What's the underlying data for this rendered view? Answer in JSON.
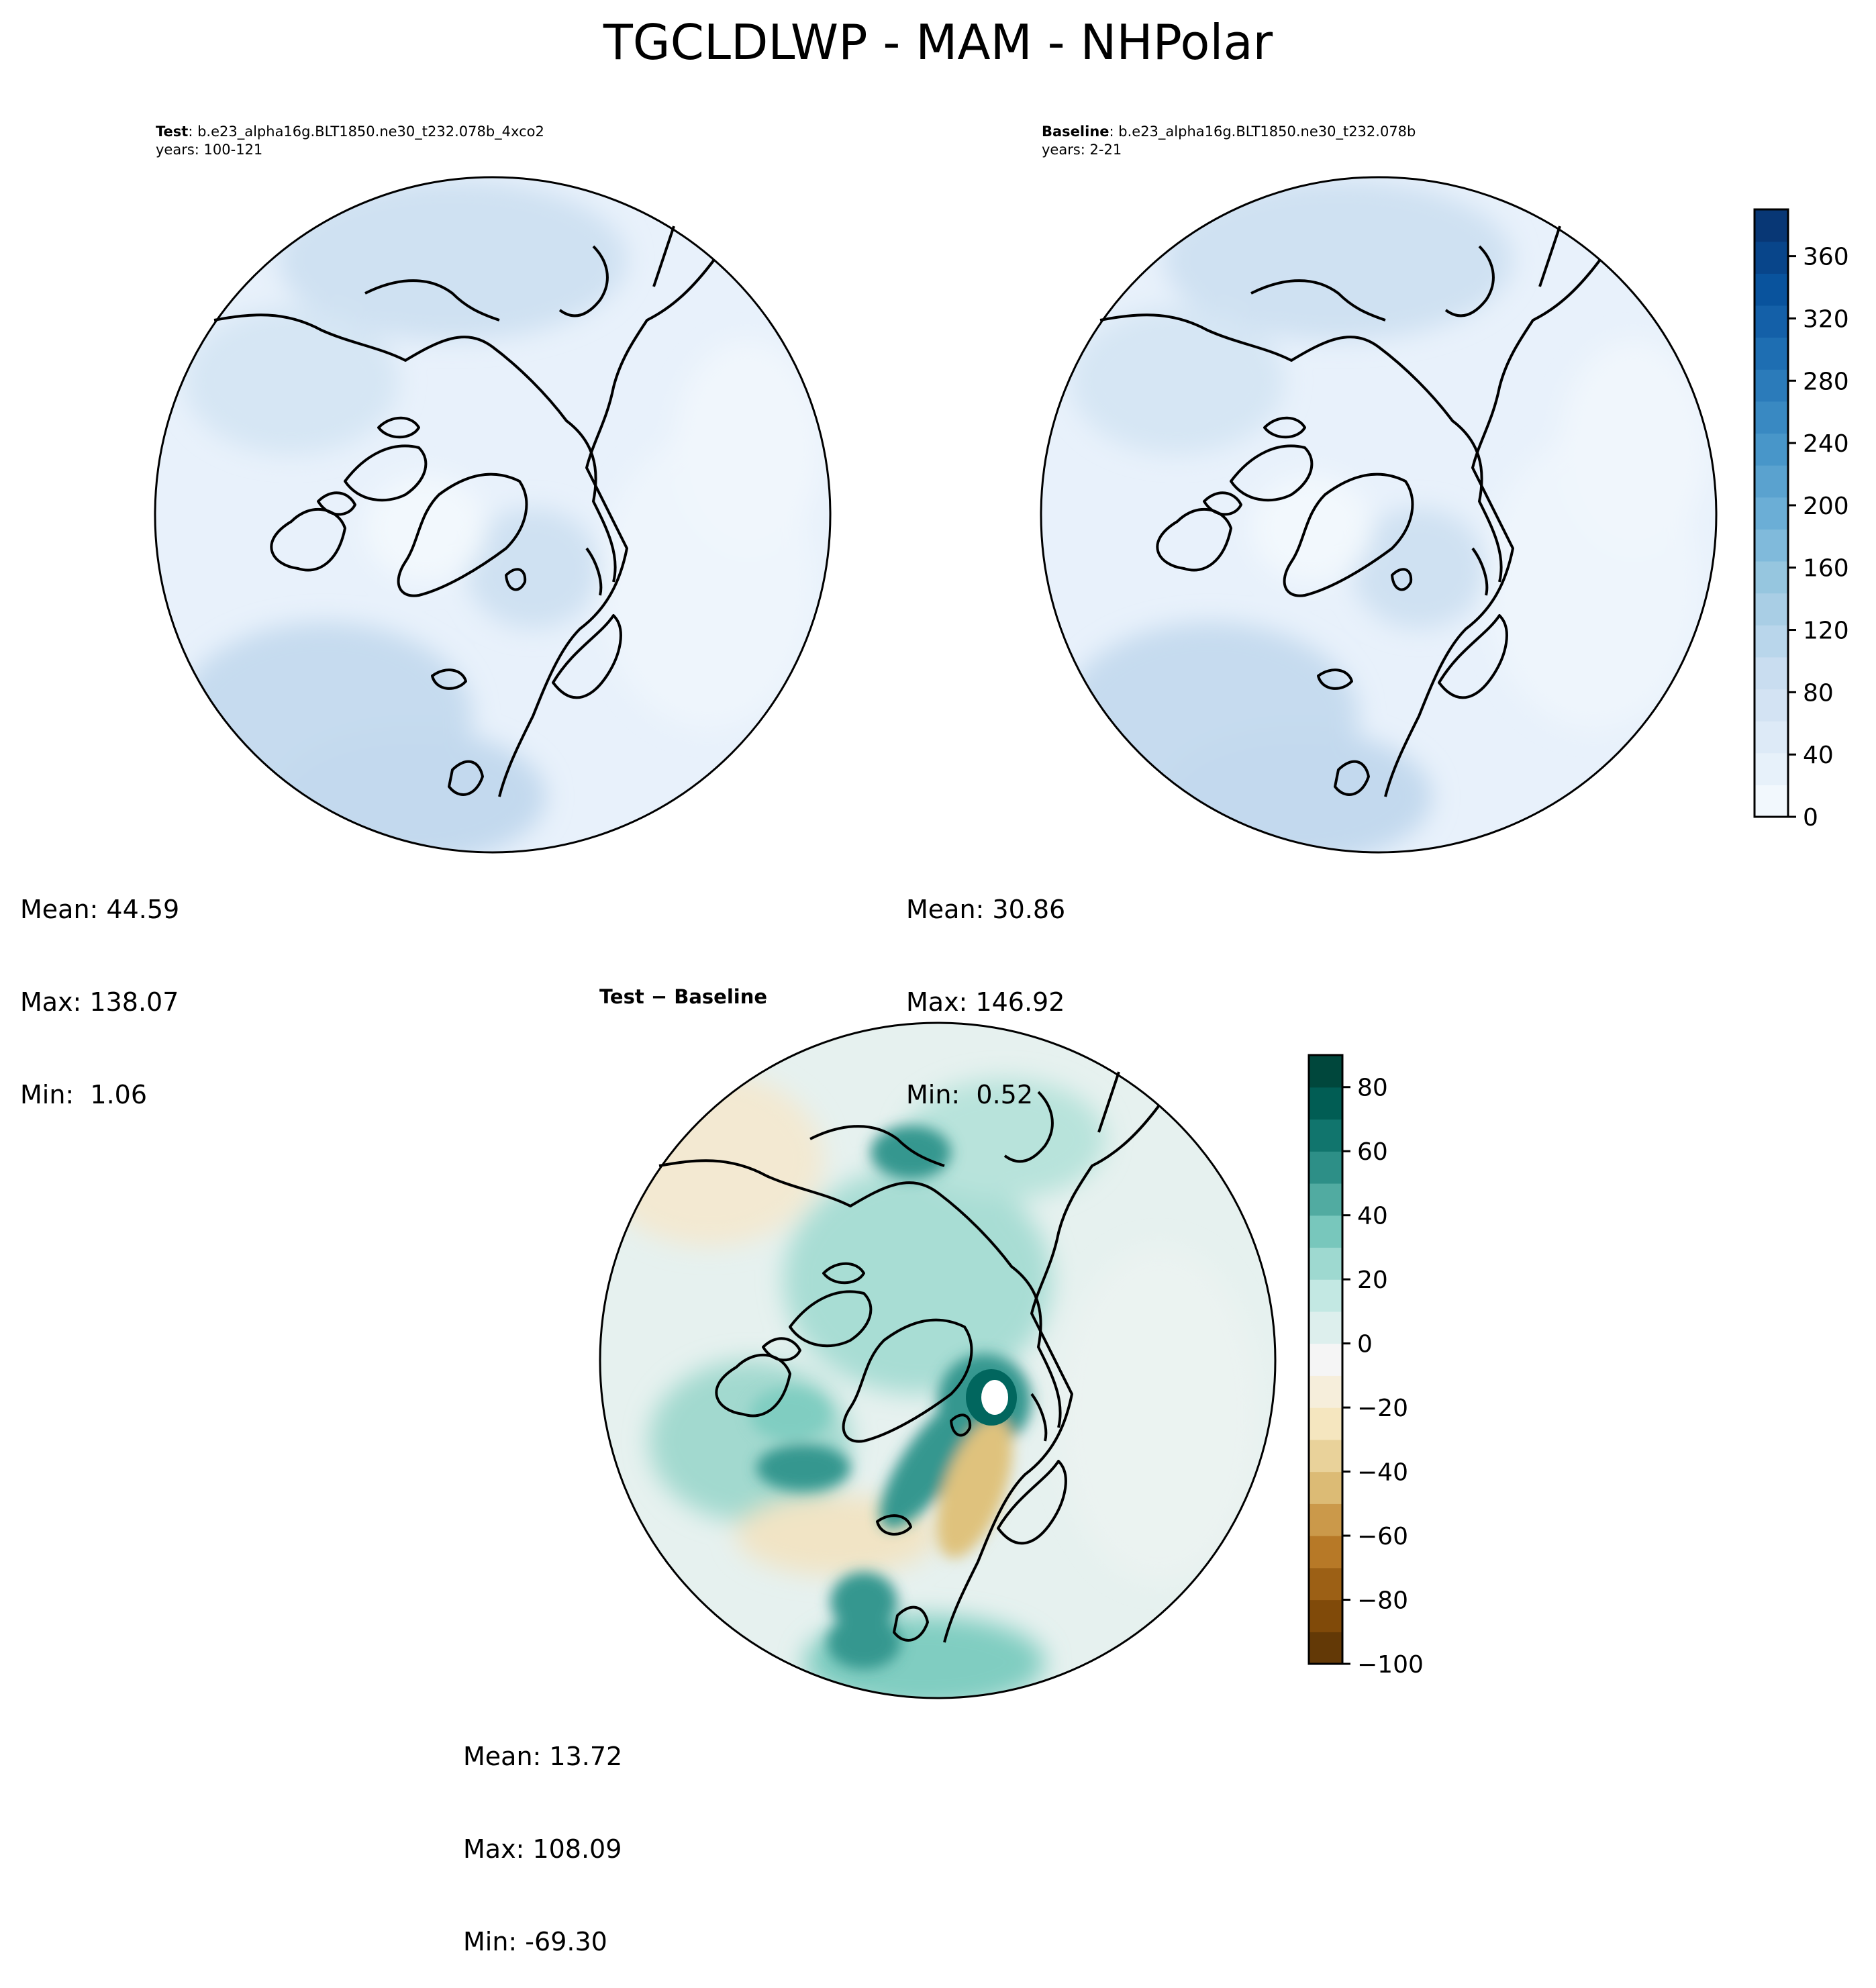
{
  "suptitle": "TGCLDLWP - MAM - NHPolar",
  "colors": {
    "sequential": [
      "#f7fbff",
      "#deebf7",
      "#c6dbef",
      "#9ecae1",
      "#6baed6",
      "#4292c6",
      "#2171b5",
      "#08519c",
      "#08306b"
    ],
    "diverging": [
      "#543005",
      "#8c510a",
      "#bf812d",
      "#dfc27d",
      "#f6e8c3",
      "#f5f5f5",
      "#c7eae5",
      "#80cdc1",
      "#35978f",
      "#01665e",
      "#003c30"
    ],
    "coastline": "#000000"
  },
  "panels": {
    "test": {
      "label": "Test",
      "case": ": b.e23_alpha16g.BLT1850.ne30_t232.078b_4xco2",
      "years": "years: 100-121",
      "stats": {
        "mean": "Mean: 44.59",
        "max": "Max: 138.07",
        "min": "Min:  1.06"
      }
    },
    "baseline": {
      "label": "Baseline",
      "case": ": b.e23_alpha16g.BLT1850.ne30_t232.078b",
      "years": "years: 2-21",
      "stats": {
        "mean": "Mean: 30.86",
        "max": "Max: 146.92",
        "min": "Min:  0.52"
      }
    },
    "diff": {
      "title": "Test − Baseline",
      "stats": {
        "mean": "Mean: 13.72",
        "max": "Max: 108.09",
        "min": "Min: -69.30"
      }
    }
  },
  "chart_data": [
    {
      "type": "heatmap",
      "projection": "north polar stereographic",
      "panel": "test",
      "title": "Test : b.e23_alpha16g.BLT1850.ne30_t232.078b_4xco2",
      "mean": 44.59,
      "max": 138.07,
      "min": 1.06
    },
    {
      "type": "heatmap",
      "projection": "north polar stereographic",
      "panel": "baseline",
      "title": "Baseline : b.e23_alpha16g.BLT1850.ne30_t232.078b",
      "mean": 30.86,
      "max": 146.92,
      "min": 0.52,
      "colorbar": {
        "range": [
          0,
          390
        ],
        "ticks": [
          0,
          40,
          80,
          120,
          160,
          200,
          240,
          280,
          320,
          360
        ],
        "tick_labels": [
          "0",
          "40",
          "80",
          "120",
          "160",
          "200",
          "240",
          "280",
          "320",
          "360"
        ],
        "colormap": "Blues"
      }
    },
    {
      "type": "heatmap",
      "projection": "north polar stereographic",
      "panel": "diff",
      "title": "Test − Baseline",
      "mean": 13.72,
      "max": 108.09,
      "min": -69.3,
      "colorbar": {
        "range": [
          -100,
          90
        ],
        "ticks": [
          -100,
          -80,
          -60,
          -40,
          -20,
          0,
          20,
          40,
          60,
          80
        ],
        "tick_labels": [
          "−100",
          "−80",
          "−60",
          "−40",
          "−20",
          "0",
          "20",
          "40",
          "60",
          "80"
        ],
        "colormap": "BrBG"
      }
    }
  ]
}
